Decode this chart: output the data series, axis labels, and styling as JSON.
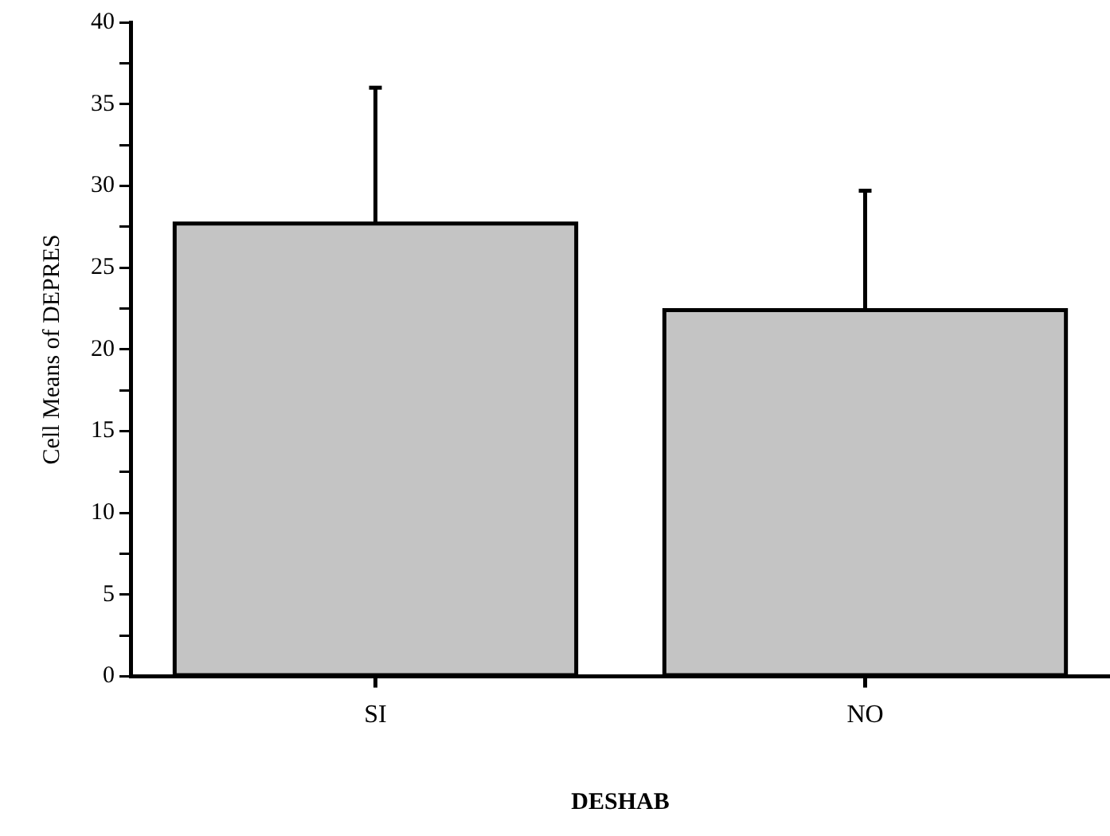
{
  "chart_data": {
    "type": "bar",
    "xlabel": "DESHAB",
    "ylabel": "Cell Means of DEPRES",
    "categories": [
      "SI",
      "NO"
    ],
    "values": [
      27.7,
      22.4
    ],
    "errors": [
      [
        27.7,
        36.0
      ],
      [
        22.4,
        29.7
      ]
    ],
    "color": "#c4c4c4",
    "ylim": [
      0,
      40
    ],
    "yticks": [
      0,
      {
        "value": 2.5,
        "label": null
      },
      5,
      {
        "value": 7.5,
        "label": null
      },
      10,
      {
        "value": 12.5,
        "label": null
      },
      15,
      {
        "value": 17.5,
        "label": null
      },
      20,
      {
        "value": 22.5,
        "label": null
      },
      25,
      {
        "value": 27.5,
        "label": null
      },
      30,
      {
        "value": 32.5,
        "label": null
      },
      35,
      {
        "value": 37.5,
        "label": null
      },
      40
    ],
    "grid": false,
    "legend": false
  }
}
